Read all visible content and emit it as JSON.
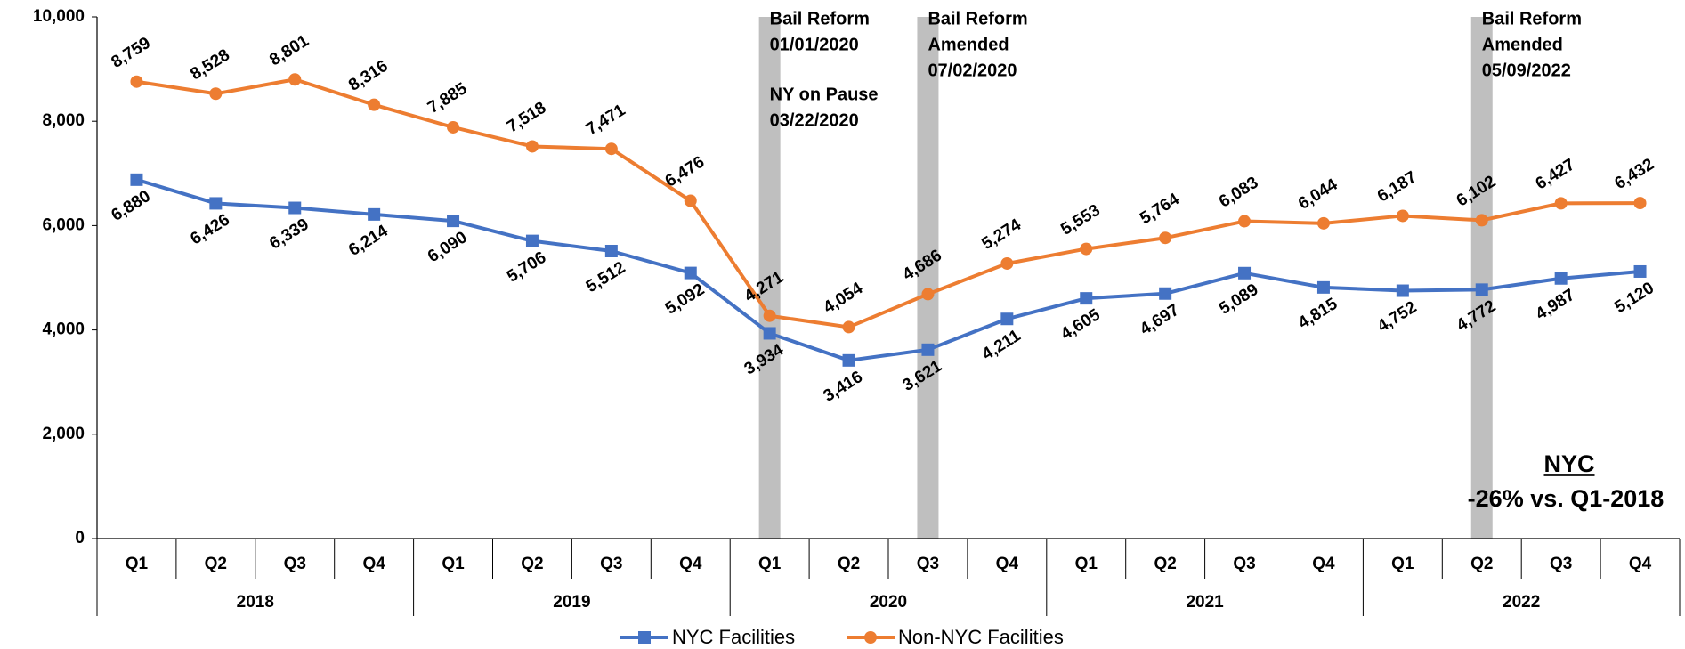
{
  "chart_data": {
    "type": "line",
    "categories": [
      "Q1",
      "Q2",
      "Q3",
      "Q4",
      "Q1",
      "Q2",
      "Q3",
      "Q4",
      "Q1",
      "Q2",
      "Q3",
      "Q4",
      "Q1",
      "Q2",
      "Q3",
      "Q4",
      "Q1",
      "Q2",
      "Q3",
      "Q4"
    ],
    "groups": [
      "2018",
      "2019",
      "2020",
      "2021",
      "2022"
    ],
    "ylim": [
      0,
      10000
    ],
    "yticks": [
      0,
      {
        "value": 2000,
        "label": "2,000"
      },
      {
        "value": 4000,
        "label": "4,000"
      },
      {
        "value": 6000,
        "label": "6,000"
      },
      {
        "value": 8000,
        "label": "8,000"
      },
      {
        "value": 10000,
        "label": "10,000"
      }
    ],
    "series": [
      {
        "name": "NYC Facilities",
        "color": "#4472c4",
        "marker": "square",
        "values": [
          6880,
          6426,
          6339,
          6214,
          6090,
          5706,
          5512,
          5092,
          3934,
          3416,
          3621,
          4211,
          4605,
          4697,
          5089,
          4815,
          4752,
          4772,
          4987,
          5120
        ],
        "value_labels": [
          "6,880",
          "6,426",
          "6,339",
          "6,214",
          "6,090",
          "5,706",
          "5,512",
          "5,092",
          "3,934",
          "3,416",
          "3,621",
          "4,211",
          "4,605",
          "4,697",
          "5,089",
          "4,815",
          "4,752",
          "4,772",
          "4,987",
          "5,120"
        ]
      },
      {
        "name": "Non-NYC Facilities",
        "color": "#ed7d31",
        "marker": "circle",
        "values": [
          8759,
          8528,
          8801,
          8316,
          7885,
          7518,
          7471,
          6476,
          4271,
          4054,
          4686,
          5274,
          5553,
          5764,
          6083,
          6044,
          6187,
          6102,
          6427,
          6432
        ],
        "value_labels": [
          "8,759",
          "8,528",
          "8,801",
          "8,316",
          "7,885",
          "7,518",
          "7,471",
          "6,476",
          "4,271",
          "4,054",
          "4,686",
          "5,274",
          "5,553",
          "5,764",
          "6,083",
          "6,044",
          "6,187",
          "6,102",
          "6,427",
          "6,432"
        ]
      }
    ],
    "annotations": [
      {
        "lines": [
          "Bail Reform",
          "01/01/2020",
          "NY on Pause",
          "03/22/2020"
        ]
      },
      {
        "lines": [
          "Bail Reform",
          "Amended",
          "07/02/2020"
        ]
      },
      {
        "lines": [
          "Bail Reform",
          "Amended",
          "05/09/2022"
        ]
      }
    ],
    "note": {
      "title": "NYC",
      "text": "-26% vs. Q1-2018"
    }
  }
}
